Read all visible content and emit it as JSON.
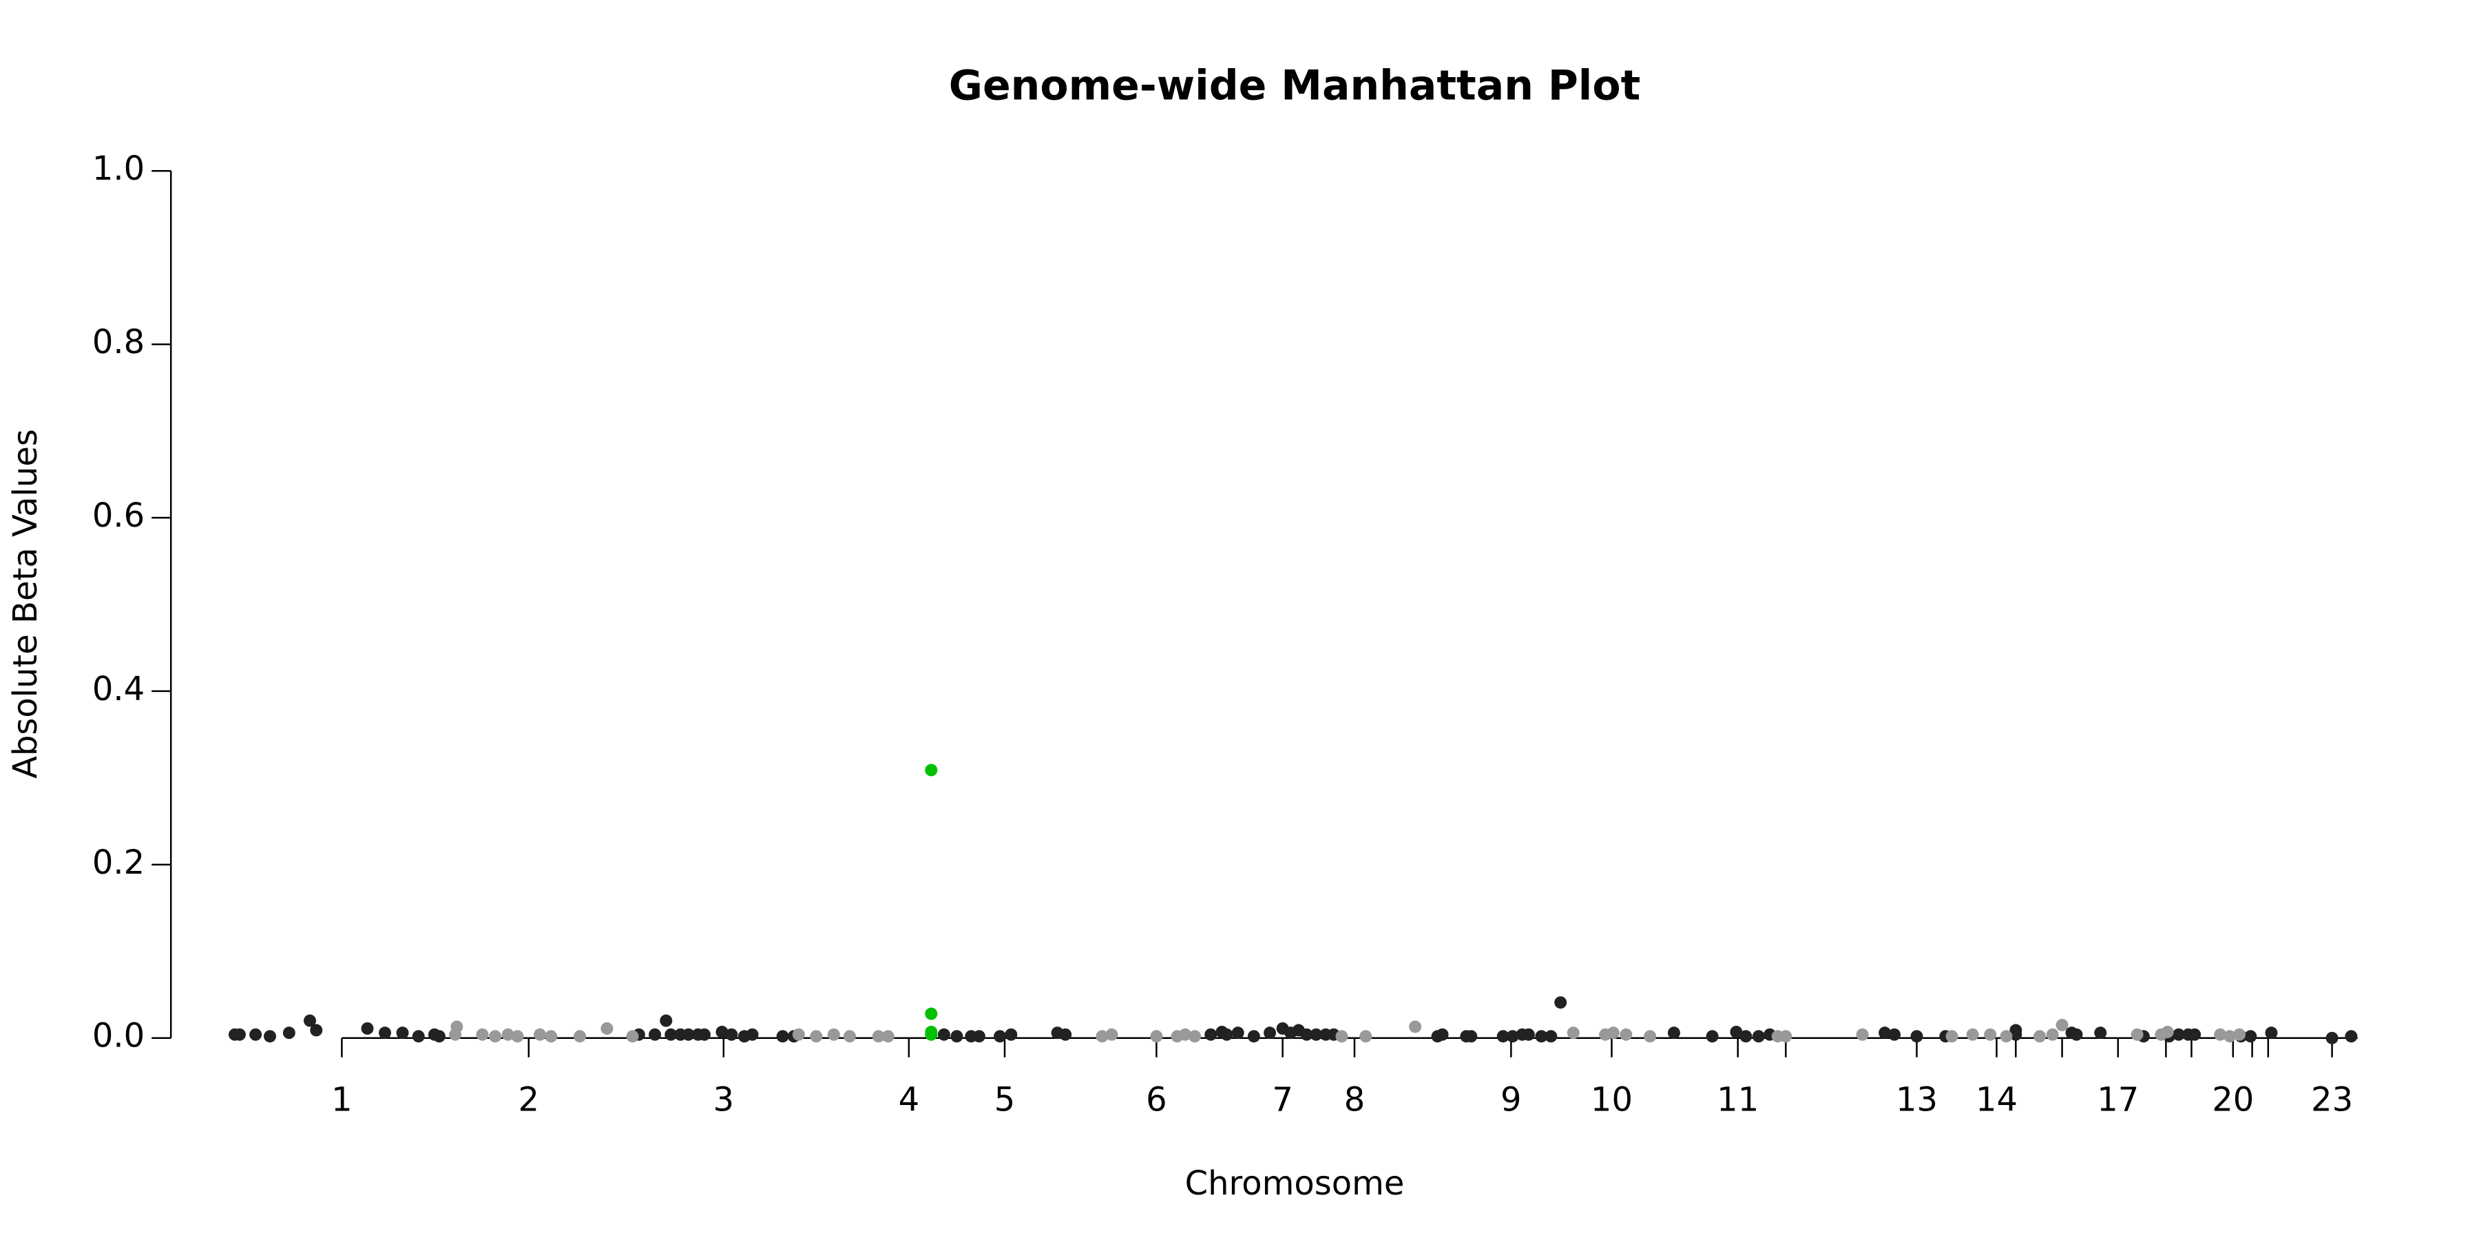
{
  "chart_data": {
    "type": "scatter",
    "title": "Genome-wide Manhattan Plot",
    "x_label": "Chromosome",
    "y_label": "Absolute Beta Values",
    "xlim": [
      0,
      1369
    ],
    "ylim": [
      0,
      1
    ],
    "yticks": [
      {
        "value": 0,
        "label": "0.0"
      },
      0.2,
      0.4,
      0.6,
      0.8,
      {
        "value": 1,
        "label": "1.0"
      }
    ],
    "xticks": [
      {
        "value": 107,
        "label": "1"
      },
      {
        "value": 224,
        "label": "2"
      },
      {
        "value": 346,
        "label": "3"
      },
      {
        "value": 462,
        "label": "4"
      },
      {
        "value": 522,
        "label": "5"
      },
      {
        "value": 617,
        "label": "6"
      },
      {
        "value": 696,
        "label": "7"
      },
      {
        "value": 741,
        "label": "8"
      },
      {
        "value": 839,
        "label": "9"
      },
      {
        "value": 902,
        "label": "10"
      },
      {
        "value": 981,
        "label": "11"
      },
      {
        "value": 1011,
        "label": null
      },
      {
        "value": 1093,
        "label": "13"
      },
      {
        "value": 1143,
        "label": "14"
      },
      {
        "value": 1155,
        "label": null
      },
      {
        "value": 1184,
        "label": null
      },
      {
        "value": 1219,
        "label": "17"
      },
      {
        "value": 1249,
        "label": null
      },
      {
        "value": 1265,
        "label": null
      },
      {
        "value": 1291,
        "label": "20"
      },
      {
        "value": 1303,
        "label": null
      },
      {
        "value": 1313,
        "label": null
      },
      {
        "value": 1353,
        "label": "23"
      }
    ],
    "series": [
      {
        "color": "#222222",
        "x": [
          40,
          43,
          53,
          62,
          74,
          87,
          91,
          123,
          134,
          145,
          155,
          165,
          168,
          293,
          303,
          310,
          313,
          319,
          324,
          330,
          334,
          345,
          351,
          359,
          364,
          383,
          390,
          484,
          492,
          501,
          506,
          519,
          526,
          555,
          560,
          651,
          658,
          661,
          668,
          678,
          688,
          696,
          701,
          706,
          711,
          717,
          723,
          728,
          793,
          796,
          811,
          814,
          834,
          840,
          846,
          850,
          858,
          864,
          870,
          941,
          965,
          980,
          986,
          994,
          1001,
          1073,
          1079,
          1093,
          1111,
          1155,
          1155,
          1190,
          1193,
          1208,
          1235,
          1251,
          1257,
          1263,
          1267,
          1296,
          1302,
          1315,
          1353,
          1365
        ],
        "values": [
          0.004,
          0.004,
          0.004,
          0.002,
          0.006,
          0.02,
          0.009,
          0.011,
          0.006,
          0.006,
          0.002,
          0.004,
          0.002,
          0.004,
          0.004,
          0.02,
          0.004,
          0.004,
          0.004,
          0.004,
          0.004,
          0.007,
          0.004,
          0.002,
          0.004,
          0.002,
          0.002,
          0.004,
          0.002,
          0.002,
          0.002,
          0.002,
          0.004,
          0.006,
          0.004,
          0.004,
          0.007,
          0.004,
          0.006,
          0.002,
          0.006,
          0.011,
          0.006,
          0.009,
          0.004,
          0.004,
          0.004,
          0.004,
          0.002,
          0.004,
          0.002,
          0.002,
          0.002,
          0.002,
          0.004,
          0.004,
          0.002,
          0.002,
          0.041,
          0.006,
          0.002,
          0.007,
          0.002,
          0.002,
          0.004,
          0.006,
          0.004,
          0.002,
          0.002,
          0.009,
          0.004,
          0.006,
          0.004,
          0.006,
          0.002,
          0.002,
          0.004,
          0.004,
          0.004,
          0.002,
          0.002,
          0.006,
          0,
          0.002
        ]
      },
      {
        "color": "#999999",
        "x": [
          178,
          179,
          195,
          203,
          211,
          217,
          231,
          238,
          256,
          273,
          289,
          393,
          404,
          415,
          425,
          443,
          449,
          583,
          589,
          617,
          630,
          635,
          641,
          733,
          748,
          779,
          878,
          898,
          903,
          911,
          926,
          1006,
          1011,
          1059,
          1115,
          1128,
          1139,
          1149,
          1170,
          1178,
          1184,
          1231,
          1246,
          1250,
          1283,
          1289,
          1295
        ],
        "values": [
          0.004,
          0.013,
          0.004,
          0.002,
          0.004,
          0.002,
          0.004,
          0.002,
          0.002,
          0.011,
          0.002,
          0.004,
          0.002,
          0.004,
          0.002,
          0.002,
          0.002,
          0.002,
          0.004,
          0.002,
          0.002,
          0.004,
          0.002,
          0.002,
          0.002,
          0.013,
          0.006,
          0.004,
          0.006,
          0.004,
          0.002,
          0.002,
          0.002,
          0.004,
          0.002,
          0.004,
          0.004,
          0.002,
          0.002,
          0.004,
          0.015,
          0.004,
          0.004,
          0.007,
          0.004,
          0.002,
          0.004
        ]
      },
      {
        "color": "#00c000",
        "x": [
          476,
          476,
          476,
          476
        ],
        "values": [
          0.309,
          0.028,
          0.007,
          0.004
        ]
      }
    ]
  }
}
